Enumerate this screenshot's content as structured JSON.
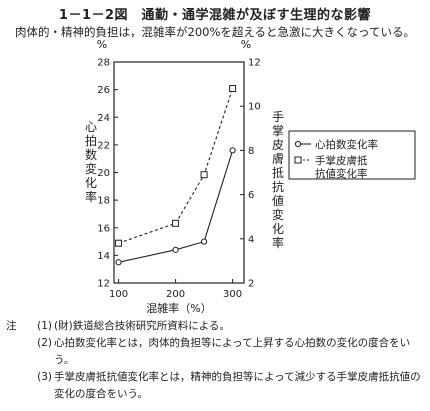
{
  "title": "1－1－2図　通勤・通学混雑が及ぼす生理的な影響",
  "subtitle": "肉体的・精神的負担は，混雑率が200%を超えると急激に大きくなっている。",
  "chart_data": {
    "type": "line",
    "x": [
      100,
      200,
      250,
      300
    ],
    "xlim": [
      92,
      320
    ],
    "xticks": [
      "100",
      "200",
      "300"
    ],
    "xlabel": "混雑率（%）",
    "y_left": {
      "unit": "%",
      "label": "心拍数変化率",
      "lim": [
        12,
        28
      ],
      "ticks": [
        "12",
        "14",
        "16",
        "18",
        "20",
        "22",
        "24",
        "26",
        "28"
      ]
    },
    "y_right": {
      "unit": "%",
      "label": "手掌皮膚抵抗値変化率",
      "lim": [
        2,
        12
      ],
      "ticks": [
        "2",
        "4",
        "6",
        "8",
        "10",
        "12"
      ]
    },
    "series": [
      {
        "name": "心拍数変化率",
        "axis": "left",
        "marker": "circle",
        "line": "solid",
        "values": [
          13.5,
          14.4,
          15.0,
          21.6
        ]
      },
      {
        "name": "手掌皮膚抵抗値変化率",
        "axis": "right",
        "marker": "square",
        "line": "dashed",
        "values": [
          3.8,
          4.7,
          6.9,
          10.8
        ]
      }
    ],
    "legend": "top-right",
    "grid": false
  },
  "notes": {
    "lead": "注",
    "items": [
      {
        "num": "(1)",
        "text": "(財)鉄道総合技術研究所資料による。"
      },
      {
        "num": "(2)",
        "text": "心拍数変化率とは，肉体的負担等によって上昇する心拍数の変化の度合をいう。"
      },
      {
        "num": "(3)",
        "text": "手掌皮膚抵抗値変化率とは，精神的負担等によって減少する手掌皮膚抵抗値の変化の度合をいう。"
      }
    ]
  }
}
